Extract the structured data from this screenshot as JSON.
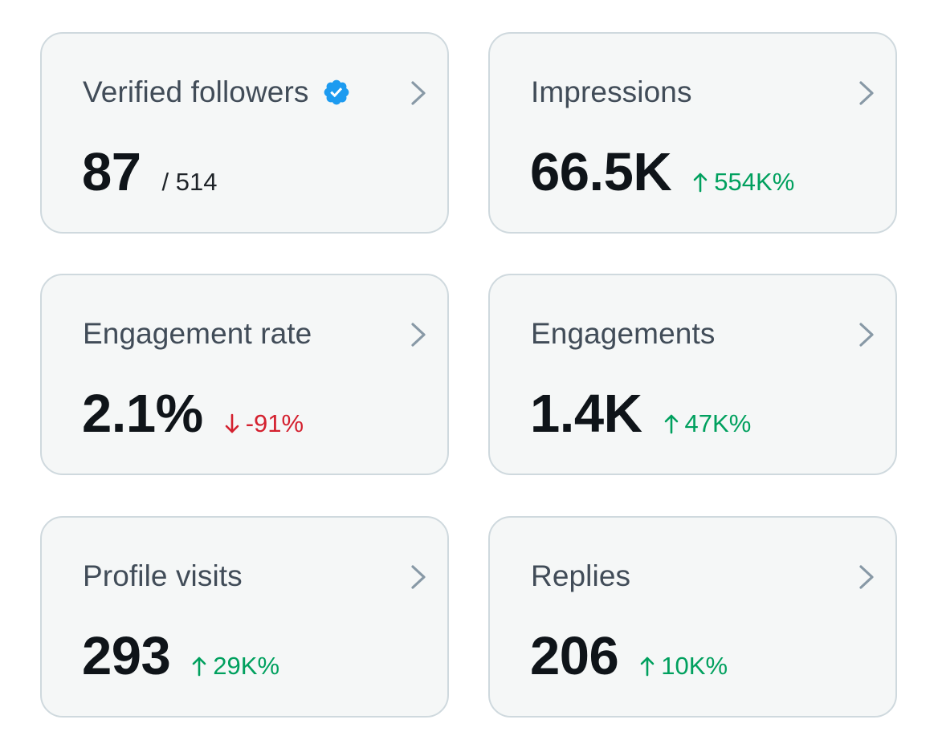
{
  "colors": {
    "card_bg": "#f5f7f7",
    "card_border": "#cfd9de",
    "label": "#414c58",
    "value": "#0f1419",
    "up": "#00a05e",
    "down": "#d4212f",
    "verified_badge": "#1d9bf0",
    "chevron": "#8899a6"
  },
  "cards": [
    {
      "label": "Verified followers",
      "badge_icon": "verified-badge-icon",
      "value": "87",
      "total": "/ 514",
      "chevron_icon": "chevron-right-icon"
    },
    {
      "label": "Impressions",
      "value": "66.5K",
      "change": "554K%",
      "direction": "up",
      "arrow_icon": "arrow-up-icon",
      "chevron_icon": "chevron-right-icon"
    },
    {
      "label": "Engagement rate",
      "value": "2.1%",
      "change": "-91%",
      "direction": "down",
      "arrow_icon": "arrow-down-icon",
      "chevron_icon": "chevron-right-icon"
    },
    {
      "label": "Engagements",
      "value": "1.4K",
      "change": "47K%",
      "direction": "up",
      "arrow_icon": "arrow-up-icon",
      "chevron_icon": "chevron-right-icon"
    },
    {
      "label": "Profile visits",
      "value": "293",
      "change": "29K%",
      "direction": "up",
      "arrow_icon": "arrow-up-icon",
      "chevron_icon": "chevron-right-icon"
    },
    {
      "label": "Replies",
      "value": "206",
      "change": "10K%",
      "direction": "up",
      "arrow_icon": "arrow-up-icon",
      "chevron_icon": "chevron-right-icon"
    }
  ]
}
